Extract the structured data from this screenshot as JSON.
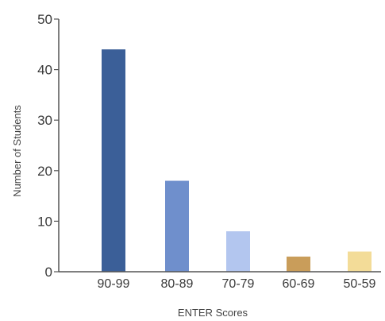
{
  "chart_data": {
    "type": "bar",
    "title": "",
    "xlabel": "ENTER Scores",
    "ylabel": "Number of Students",
    "categories": [
      "90-99",
      "80-89",
      "70-79",
      "60-69",
      "50-59"
    ],
    "values": [
      44,
      18,
      8,
      3,
      4
    ],
    "ylim": [
      0,
      50
    ],
    "yticks": [
      0,
      10,
      20,
      30,
      40,
      50
    ],
    "colors": [
      "#3b5f98",
      "#6f8fcc",
      "#b3c6ef",
      "#c99d5a",
      "#f3dc98"
    ],
    "grid": false,
    "legend": "none"
  }
}
